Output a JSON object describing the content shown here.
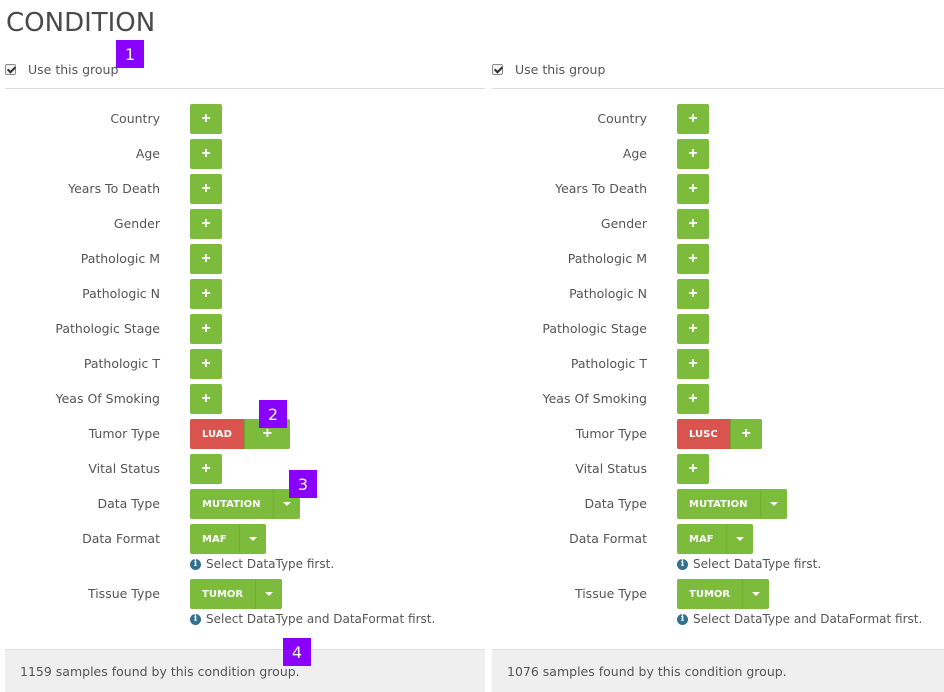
{
  "title": "CONDITION",
  "groups": [
    {
      "use_label": "Use this group",
      "fields": [
        "Country",
        "Age",
        "Years To Death",
        "Gender",
        "Pathologic M",
        "Pathologic N",
        "Pathologic Stage",
        "Pathologic T",
        "Yeas Of Smoking",
        "Tumor Type",
        "Vital Status",
        "Data Type",
        "Data Format",
        "Tissue Type"
      ],
      "tumor_tag": "LUAD",
      "plus": "+",
      "data_type": "MUTATION",
      "data_format": "MAF",
      "tissue_type": "TUMOR",
      "hint_format": "Select DataType first.",
      "hint_tissue": "Select DataType and DataFormat first.",
      "footer": "1159 samples found by this condition group.",
      "icon_info": "i"
    },
    {
      "use_label": "Use this group",
      "fields": [
        "Country",
        "Age",
        "Years To Death",
        "Gender",
        "Pathologic M",
        "Pathologic N",
        "Pathologic Stage",
        "Pathologic T",
        "Yeas Of Smoking",
        "Tumor Type",
        "Vital Status",
        "Data Type",
        "Data Format",
        "Tissue Type"
      ],
      "tumor_tag": "LUSC",
      "plus": "+",
      "data_type": "MUTATION",
      "data_format": "MAF",
      "tissue_type": "TUMOR",
      "hint_format": "Select DataType first.",
      "hint_tissue": "Select DataType and DataFormat first.",
      "footer": "1076 samples found by this condition group.",
      "icon_info": "i"
    }
  ],
  "badges": [
    "1",
    "2",
    "3",
    "4"
  ],
  "colors": {
    "green": "#7dbb3c",
    "red": "#d9534f",
    "badge": "#8a00ff",
    "info": "#31708f"
  }
}
